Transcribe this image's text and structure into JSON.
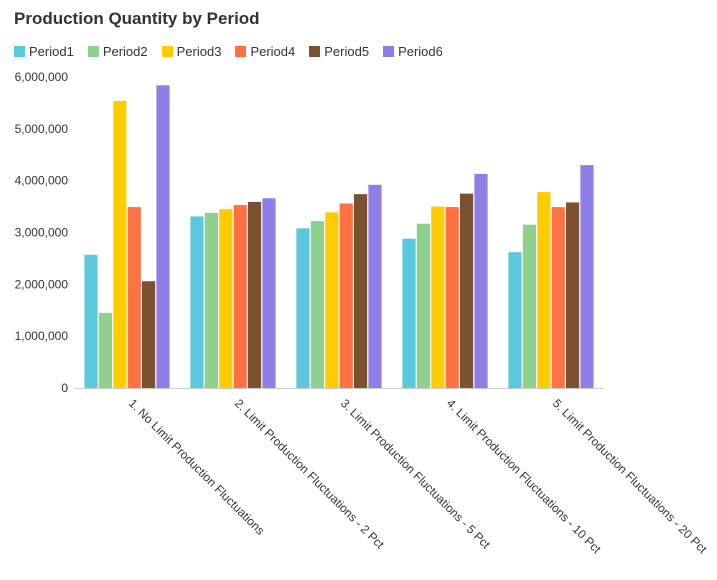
{
  "chart_data": {
    "type": "bar",
    "title": "Production Quantity by Period",
    "xlabel": "",
    "ylabel": "",
    "ylim": [
      0,
      6000000
    ],
    "yticks": [
      0,
      1000000,
      2000000,
      3000000,
      4000000,
      5000000,
      6000000
    ],
    "ytick_labels": [
      "0",
      "1,000,000",
      "2,000,000",
      "3,000,000",
      "4,000,000",
      "5,000,000",
      "6,000,000"
    ],
    "legend_position": "top-left",
    "categories": [
      "1. No Limit Production Fluctuations",
      "2. Limit Production Fluctuations - 2 Pct",
      "3. Limit Production Fluctuations - 5 Pct",
      "4. Limit Production Fluctuations - 10 Pct",
      "5. Limit Production Fluctuations - 20 Pct"
    ],
    "series": [
      {
        "name": "Period1",
        "color": "#5bc8dc",
        "values": [
          2570000,
          3310000,
          3080000,
          2880000,
          2620000
        ]
      },
      {
        "name": "Period2",
        "color": "#8ed18c",
        "values": [
          1450000,
          3380000,
          3220000,
          3170000,
          3150000
        ]
      },
      {
        "name": "Period3",
        "color": "#ffcc00",
        "values": [
          5540000,
          3450000,
          3390000,
          3500000,
          3780000
        ]
      },
      {
        "name": "Period4",
        "color": "#ff7043",
        "values": [
          3490000,
          3530000,
          3560000,
          3490000,
          3490000
        ]
      },
      {
        "name": "Period5",
        "color": "#7b5230",
        "values": [
          2060000,
          3590000,
          3740000,
          3750000,
          3580000
        ]
      },
      {
        "name": "Period6",
        "color": "#8f7ee6",
        "values": [
          5840000,
          3660000,
          3920000,
          4130000,
          4300000
        ]
      }
    ]
  }
}
